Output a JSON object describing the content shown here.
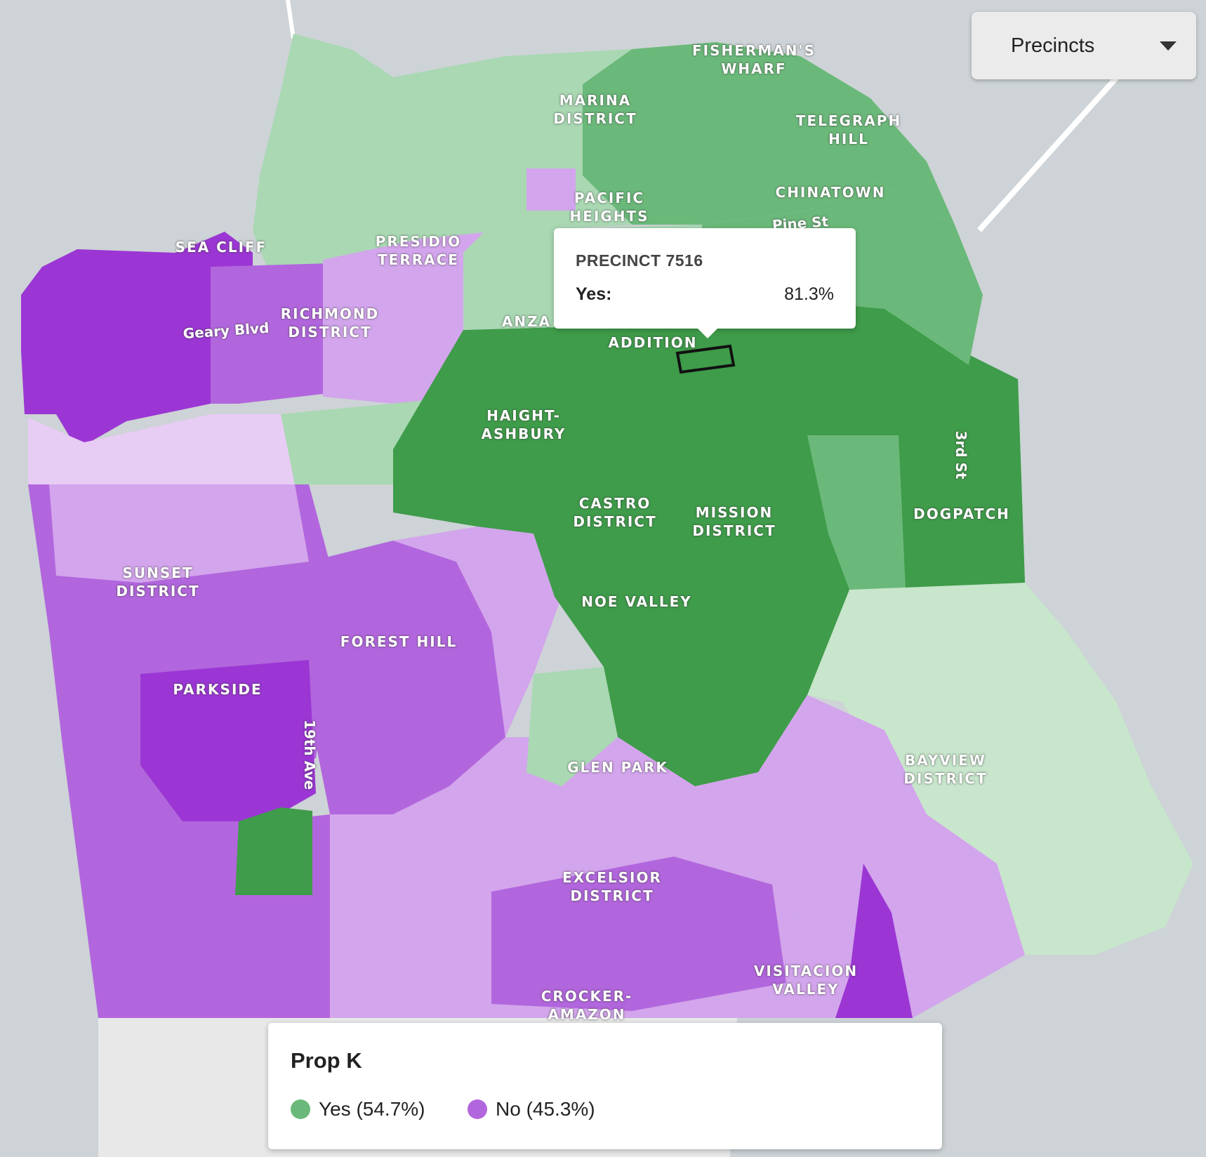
{
  "map": {
    "colors": {
      "water": "#cdd3d6",
      "land": "#e8e8e8",
      "yes_strong": "#3f9c4a",
      "yes_mid": "#6bb97a",
      "yes_light": "#a9d8b3",
      "yes_faint": "#c8e6cc",
      "no_strong": "#9b36d4",
      "no_mid": "#b266dd",
      "no_light": "#d3a5ec",
      "no_faint": "#e7ccf4"
    },
    "neighborhoods": [
      {
        "id": "fishermans-wharf",
        "label": "FISHERMAN'S\nWHARF"
      },
      {
        "id": "marina",
        "label": "MARINA\nDISTRICT"
      },
      {
        "id": "telegraph",
        "label": "TELEGRAPH\nHILL"
      },
      {
        "id": "chinatown",
        "label": "CHINATOWN"
      },
      {
        "id": "pacific-heights",
        "label": "PACIFIC\nHEIGHTS"
      },
      {
        "id": "presidio-terrace",
        "label": "PRESIDIO\nTERRACE"
      },
      {
        "id": "sea-cliff",
        "label": "SEA CLIFF"
      },
      {
        "id": "richmond",
        "label": "RICHMOND\nDISTRICT"
      },
      {
        "id": "anza",
        "label": "ANZA"
      },
      {
        "id": "western-addition",
        "label": "ADDITION"
      },
      {
        "id": "haight",
        "label": "HAIGHT-\nASHBURY"
      },
      {
        "id": "castro",
        "label": "CASTRO\nDISTRICT"
      },
      {
        "id": "mission",
        "label": "MISSION\nDISTRICT"
      },
      {
        "id": "dogpatch",
        "label": "DOGPATCH"
      },
      {
        "id": "sunset",
        "label": "SUNSET\nDISTRICT"
      },
      {
        "id": "forest-hill",
        "label": "FOREST HILL"
      },
      {
        "id": "noe-valley",
        "label": "NOE VALLEY"
      },
      {
        "id": "parkside",
        "label": "PARKSIDE"
      },
      {
        "id": "glen-park",
        "label": "GLEN PARK"
      },
      {
        "id": "bayview",
        "label": "BAYVIEW\nDISTRICT"
      },
      {
        "id": "excelsior",
        "label": "EXCELSIOR\nDISTRICT"
      },
      {
        "id": "visitacion",
        "label": "VISITACION\nVALLEY"
      },
      {
        "id": "crocker",
        "label": "CROCKER-\nAMAZON"
      }
    ],
    "streets": [
      {
        "id": "geary",
        "label": "Geary Blvd"
      },
      {
        "id": "pine",
        "label": "Pine St"
      },
      {
        "id": "third",
        "label": "3rd St"
      },
      {
        "id": "nineteenth",
        "label": "19th Ave"
      }
    ]
  },
  "layer_select": {
    "selected": "Precincts"
  },
  "tooltip": {
    "title": "PRECINCT 7516",
    "label": "Yes:",
    "value": "81.3%",
    "yes_share": 0.813
  },
  "legend": {
    "title": "Prop K",
    "items": [
      {
        "label": "Yes (54.7%)",
        "color": "#6bb97a",
        "share": 0.547
      },
      {
        "label": "No (45.3%)",
        "color": "#b266dd",
        "share": 0.453
      }
    ]
  }
}
